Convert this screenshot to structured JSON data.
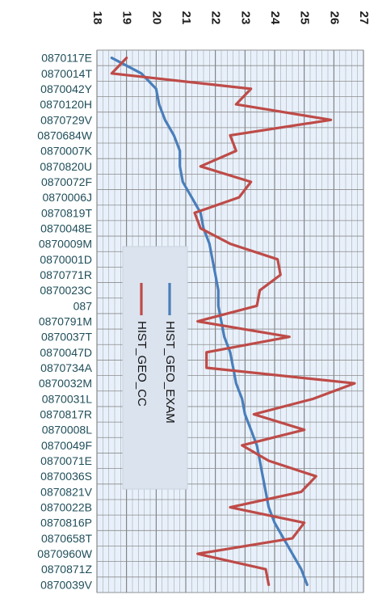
{
  "chart_data": {
    "type": "line",
    "orientation": "rotated-90",
    "value_axis": {
      "min": 18,
      "max": 27,
      "step": 1,
      "position": "top",
      "tick_labels": [
        "18",
        "19",
        "20",
        "21",
        "22",
        "23",
        "24",
        "25",
        "26",
        "27"
      ]
    },
    "categories": [
      "0870117E",
      "0870014T",
      "0870042Y",
      "0870120H",
      "0870729V",
      "0870684W",
      "0870007K",
      "0870820U",
      "0870072F",
      "0870006J",
      "0870819T",
      "0870048E",
      "0870009M",
      "0870001D",
      "0870771R",
      "0870023C",
      "087",
      "0870791M",
      "0870037T",
      "0870047D",
      "0870734A",
      "0870032M",
      "0870031L",
      "0870817R",
      "0870008L",
      "0870049F",
      "0870071E",
      "0870036S",
      "0870821V",
      "0870022B",
      "0870816P",
      "0870658T",
      "0870960W",
      "0870871Z",
      "0870039V"
    ],
    "series": [
      {
        "name": "HIST_GEO_EXAM",
        "color": "#4a7ebb",
        "values": [
          18.5,
          19.5,
          20,
          20.1,
          20.3,
          20.6,
          20.8,
          20.8,
          20.9,
          21.2,
          21.5,
          21.6,
          21.8,
          21.9,
          22,
          22.1,
          22.1,
          22.2,
          22.3,
          22.5,
          22.6,
          22.7,
          22.9,
          23,
          23.2,
          23.4,
          23.5,
          23.6,
          23.7,
          23.8,
          24,
          24.3,
          24.6,
          24.9,
          25.1
        ]
      },
      {
        "name": "HIST_GEO_CC",
        "color": "#be4b48",
        "values": [
          19,
          18.5,
          23.2,
          22.7,
          25.9,
          22.5,
          22.7,
          21.5,
          23.2,
          22.8,
          21.3,
          21.5,
          22.5,
          24.1,
          24.2,
          23.5,
          23.4,
          21.4,
          24.5,
          21.7,
          21.7,
          26.7,
          25.3,
          23.3,
          25,
          22.9,
          23.8,
          25.4,
          24.9,
          22.5,
          25,
          24.6,
          21.4,
          23.7,
          23.8
        ]
      }
    ],
    "legend": {
      "position": "center-left",
      "entries": [
        "HIST_GEO_EXAM",
        "HIST_GEO_CC"
      ]
    },
    "grid": true,
    "plot_background": "#e8f1fb"
  }
}
